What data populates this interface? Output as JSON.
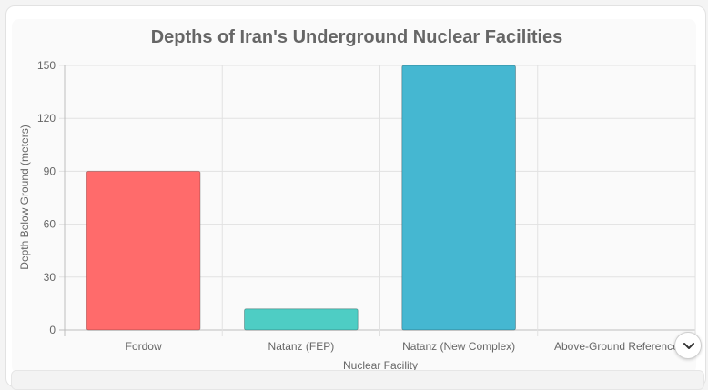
{
  "chart_data": {
    "type": "bar",
    "title": "Depths of Iran's Underground Nuclear Facilities",
    "xlabel": "Nuclear Facility",
    "ylabel": "Depth Below Ground (meters)",
    "categories": [
      "Fordow",
      "Natanz (FEP)",
      "Natanz (New Complex)",
      "Above-Ground Reference"
    ],
    "values": [
      90,
      12,
      150,
      0
    ],
    "ylim": [
      0,
      150
    ],
    "yticks": [
      0,
      30,
      60,
      90,
      120,
      150
    ],
    "colors": [
      "#ff6b6b",
      "#4ecdc4",
      "#45b7d1",
      "#96ceb4"
    ],
    "grid": true,
    "legend": "none"
  },
  "ui": {
    "scroll_icon": "chevron-down-icon"
  }
}
